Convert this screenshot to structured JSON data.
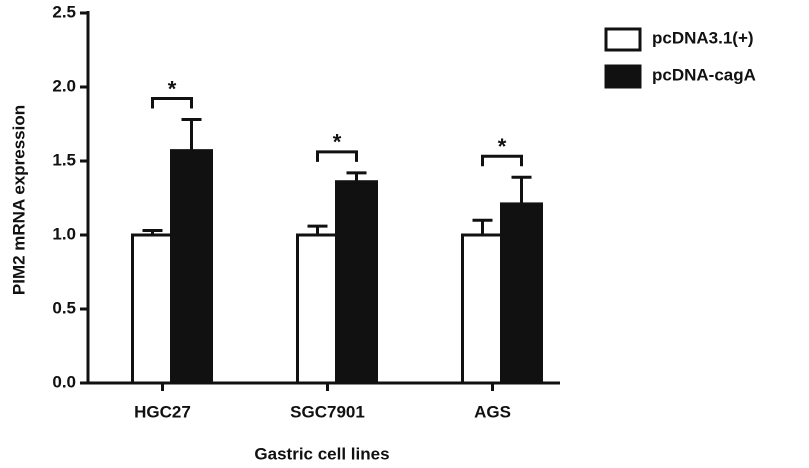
{
  "chart_data": {
    "type": "bar",
    "xlabel": "Gastric cell lines",
    "ylabel": "PIM2 mRNA expression",
    "categories": [
      "HGC27",
      "SGC7901",
      "AGS"
    ],
    "series": [
      {
        "name": "pcDNA3.1(+)",
        "color": "#ffffff",
        "values": [
          1.0,
          1.0,
          1.0
        ],
        "errors": [
          0.03,
          0.06,
          0.1
        ]
      },
      {
        "name": "pcDNA-cagA",
        "color": "#111111",
        "values": [
          1.57,
          1.36,
          1.21
        ],
        "errors": [
          0.21,
          0.06,
          0.18
        ]
      }
    ],
    "significance": [
      "*",
      "*",
      "*"
    ],
    "ylim": [
      0,
      2.5
    ],
    "yticks": [
      {
        "value": 0,
        "label": "0.0"
      },
      0.5,
      {
        "value": 1,
        "label": "1.0"
      },
      1.5,
      {
        "value": 2,
        "label": "2.0"
      },
      2.5
    ],
    "legend": "upper right"
  }
}
